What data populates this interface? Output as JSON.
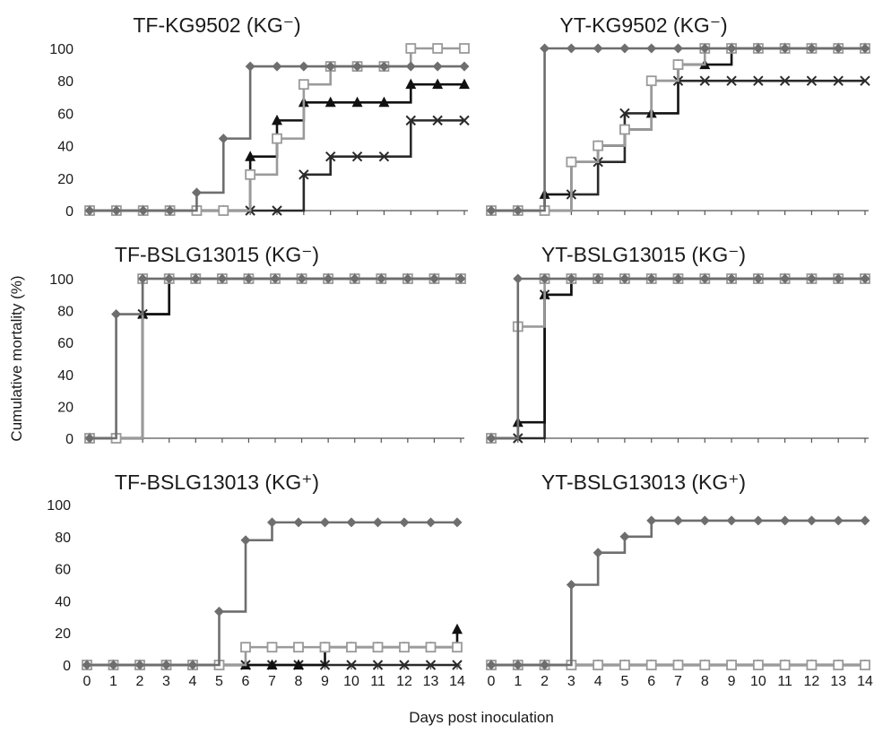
{
  "figure": {
    "ylabel": "Cumulative mortality (%)",
    "xlabel": "Days post inoculation"
  },
  "styles": {
    "diamond": {
      "color": "#6e6e6e",
      "marker": "diamond"
    },
    "square": {
      "color": "#9a9a9a",
      "marker": "square-open"
    },
    "triangle": {
      "color": "#111111",
      "marker": "triangle"
    },
    "cross": {
      "color": "#2a2a2a",
      "marker": "cross"
    }
  },
  "chart_data": [
    {
      "type": "line",
      "step": true,
      "title": "TF-KG9502 (KG⁻)",
      "x": [
        0,
        1,
        2,
        3,
        4,
        5,
        6,
        7,
        8,
        9,
        10,
        11,
        12,
        13,
        14
      ],
      "ylim": [
        0,
        100
      ],
      "yticks": [
        0,
        20,
        40,
        60,
        80,
        100
      ],
      "series": [
        {
          "style": "diamond",
          "values": [
            0,
            0,
            0,
            0,
            11.1,
            44.4,
            88.9,
            88.9,
            88.9,
            88.9,
            88.9,
            88.9,
            88.9,
            88.9,
            88.9
          ]
        },
        {
          "style": "square",
          "values": [
            0,
            0,
            0,
            0,
            0,
            0,
            22.2,
            44.4,
            77.8,
            88.9,
            88.9,
            88.9,
            100,
            100,
            100
          ]
        },
        {
          "style": "triangle",
          "values": [
            0,
            0,
            0,
            0,
            0,
            0,
            33.3,
            55.6,
            66.7,
            66.7,
            66.7,
            66.7,
            77.8,
            77.8,
            77.8
          ]
        },
        {
          "style": "cross",
          "values": [
            0,
            0,
            0,
            0,
            0,
            0,
            0,
            0,
            22.2,
            33.3,
            33.3,
            33.3,
            55.6,
            55.6,
            55.6
          ]
        }
      ]
    },
    {
      "type": "line",
      "step": true,
      "title": "YT-KG9502 (KG⁻)",
      "x": [
        0,
        1,
        2,
        3,
        4,
        5,
        6,
        7,
        8,
        9,
        10,
        11,
        12,
        13,
        14
      ],
      "ylim": [
        0,
        100
      ],
      "yticks": [],
      "series": [
        {
          "style": "diamond",
          "values": [
            0,
            0,
            100,
            100,
            100,
            100,
            100,
            100,
            100,
            100,
            100,
            100,
            100,
            100,
            100
          ]
        },
        {
          "style": "square",
          "values": [
            0,
            0,
            0,
            30,
            40,
            50,
            80,
            90,
            100,
            100,
            100,
            100,
            100,
            100,
            100
          ]
        },
        {
          "style": "triangle",
          "values": [
            0,
            0,
            10,
            30,
            40,
            50,
            60,
            90,
            90,
            100,
            100,
            100,
            100,
            100,
            100
          ]
        },
        {
          "style": "cross",
          "values": [
            0,
            0,
            0,
            10,
            30,
            60,
            80,
            80,
            80,
            80,
            80,
            80,
            80,
            80,
            80
          ]
        }
      ]
    },
    {
      "type": "line",
      "step": true,
      "title": "TF-BSLG13015 (KG⁻)",
      "x": [
        0,
        1,
        2,
        3,
        4,
        5,
        6,
        7,
        8,
        9,
        10,
        11,
        12,
        13,
        14
      ],
      "ylim": [
        0,
        100
      ],
      "yticks": [
        0,
        20,
        40,
        60,
        80,
        100
      ],
      "series": [
        {
          "style": "diamond",
          "values": [
            0,
            77.8,
            100,
            100,
            100,
            100,
            100,
            100,
            100,
            100,
            100,
            100,
            100,
            100,
            100
          ]
        },
        {
          "style": "square",
          "values": [
            0,
            0,
            100,
            100,
            100,
            100,
            100,
            100,
            100,
            100,
            100,
            100,
            100,
            100,
            100
          ]
        },
        {
          "style": "triangle",
          "values": [
            0,
            0,
            77.8,
            100,
            100,
            100,
            100,
            100,
            100,
            100,
            100,
            100,
            100,
            100,
            100
          ]
        },
        {
          "style": "cross",
          "values": [
            0,
            0,
            77.8,
            100,
            100,
            100,
            100,
            100,
            100,
            100,
            100,
            100,
            100,
            100,
            100
          ]
        }
      ]
    },
    {
      "type": "line",
      "step": true,
      "title": "YT-BSLG13015 (KG⁻)",
      "x": [
        0,
        1,
        2,
        3,
        4,
        5,
        6,
        7,
        8,
        9,
        10,
        11,
        12,
        13,
        14
      ],
      "ylim": [
        0,
        100
      ],
      "yticks": [],
      "series": [
        {
          "style": "diamond",
          "values": [
            0,
            100,
            100,
            100,
            100,
            100,
            100,
            100,
            100,
            100,
            100,
            100,
            100,
            100,
            100
          ]
        },
        {
          "style": "square",
          "values": [
            0,
            70,
            100,
            100,
            100,
            100,
            100,
            100,
            100,
            100,
            100,
            100,
            100,
            100,
            100
          ]
        },
        {
          "style": "triangle",
          "values": [
            0,
            10,
            90,
            100,
            100,
            100,
            100,
            100,
            100,
            100,
            100,
            100,
            100,
            100,
            100
          ]
        },
        {
          "style": "cross",
          "values": [
            0,
            0,
            90,
            100,
            100,
            100,
            100,
            100,
            100,
            100,
            100,
            100,
            100,
            100,
            100
          ]
        }
      ]
    },
    {
      "type": "line",
      "step": true,
      "title": "TF-BSLG13013 (KG⁺)",
      "x": [
        0,
        1,
        2,
        3,
        4,
        5,
        6,
        7,
        8,
        9,
        10,
        11,
        12,
        13,
        14
      ],
      "ylim": [
        0,
        100
      ],
      "yticks": [
        0,
        20,
        40,
        60,
        80,
        100
      ],
      "series": [
        {
          "style": "diamond",
          "values": [
            0,
            0,
            0,
            0,
            0,
            33.3,
            77.8,
            88.9,
            88.9,
            88.9,
            88.9,
            88.9,
            88.9,
            88.9,
            88.9
          ]
        },
        {
          "style": "square",
          "values": [
            0,
            0,
            0,
            0,
            0,
            0,
            11.1,
            11.1,
            11.1,
            11.1,
            11.1,
            11.1,
            11.1,
            11.1,
            11.1
          ]
        },
        {
          "style": "triangle",
          "values": [
            0,
            0,
            0,
            0,
            0,
            0,
            0,
            0,
            0,
            11.1,
            11.1,
            11.1,
            11.1,
            11.1,
            22.2
          ]
        },
        {
          "style": "cross",
          "values": [
            0,
            0,
            0,
            0,
            0,
            0,
            0,
            0,
            0,
            0,
            0,
            0,
            0,
            0,
            0
          ]
        }
      ]
    },
    {
      "type": "line",
      "step": true,
      "title": "YT-BSLG13013 (KG⁺)",
      "x": [
        0,
        1,
        2,
        3,
        4,
        5,
        6,
        7,
        8,
        9,
        10,
        11,
        12,
        13,
        14
      ],
      "ylim": [
        0,
        100
      ],
      "yticks": [],
      "series": [
        {
          "style": "diamond",
          "values": [
            0,
            0,
            0,
            50,
            70,
            80,
            90,
            90,
            90,
            90,
            90,
            90,
            90,
            90,
            90
          ]
        },
        {
          "style": "square",
          "values": [
            0,
            0,
            0,
            0,
            0,
            0,
            0,
            0,
            0,
            0,
            0,
            0,
            0,
            0,
            0
          ]
        },
        {
          "style": "triangle",
          "values": [
            0,
            0,
            0,
            0,
            0,
            0,
            0,
            0,
            0,
            0,
            0,
            0,
            0,
            0,
            0
          ]
        },
        {
          "style": "cross",
          "values": [
            0,
            0,
            0,
            0,
            0,
            0,
            0,
            0,
            0,
            0,
            0,
            0,
            0,
            0,
            0
          ]
        }
      ]
    }
  ]
}
